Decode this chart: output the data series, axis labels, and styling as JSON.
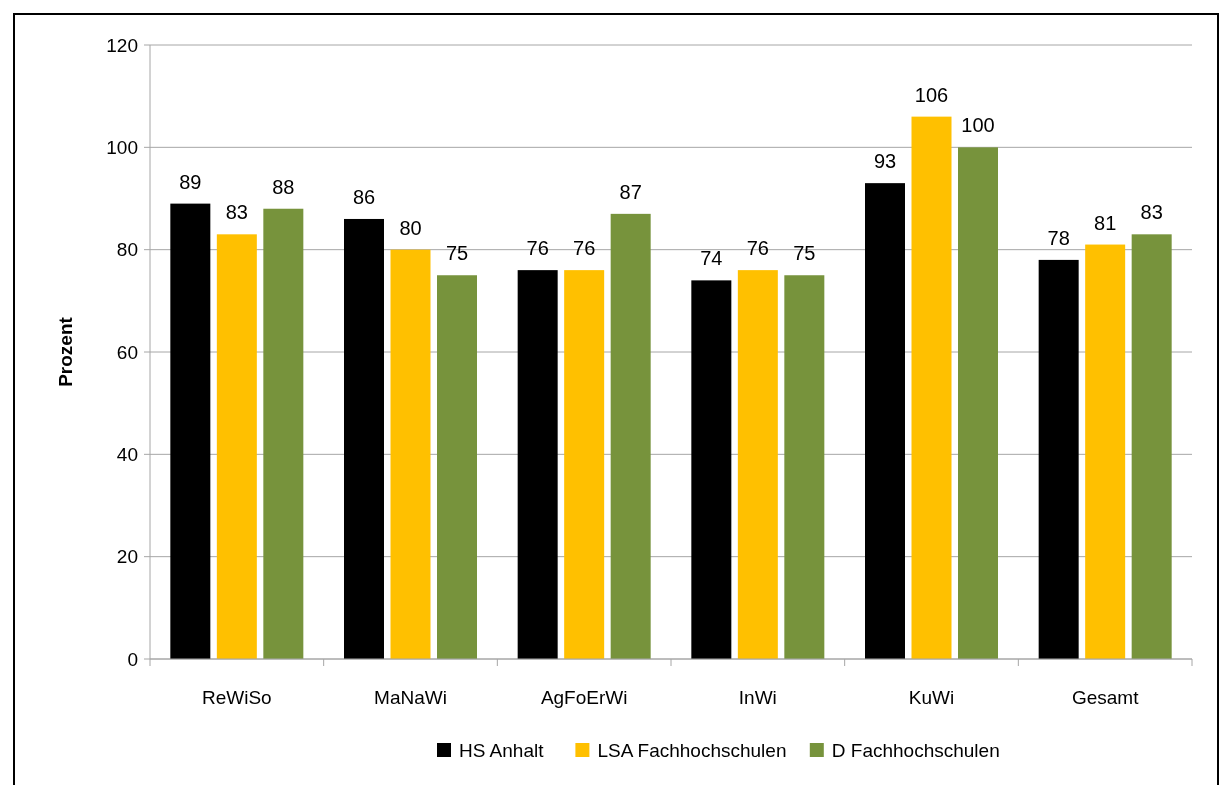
{
  "chart_data": {
    "type": "bar",
    "ylabel": "Prozent",
    "categories": [
      "ReWiSo",
      "MaNaWi",
      "AgFoErWi",
      "InWi",
      "KuWi",
      "Gesamt"
    ],
    "series": [
      {
        "name": "HS Anhalt",
        "color": "#000000",
        "values": [
          89,
          86,
          76,
          74,
          93,
          78
        ]
      },
      {
        "name": "LSA Fachhochschulen",
        "color": "#ffc000",
        "values": [
          83,
          80,
          76,
          76,
          106,
          81
        ]
      },
      {
        "name": "D Fachhochschulen",
        "color": "#77933c",
        "values": [
          88,
          75,
          87,
          75,
          100,
          83
        ]
      }
    ],
    "ylim": [
      0,
      120
    ],
    "yticks": [
      0,
      20,
      40,
      60,
      80,
      100,
      120
    ],
    "grid": "y",
    "legend": "bottom",
    "data_labels": true
  }
}
